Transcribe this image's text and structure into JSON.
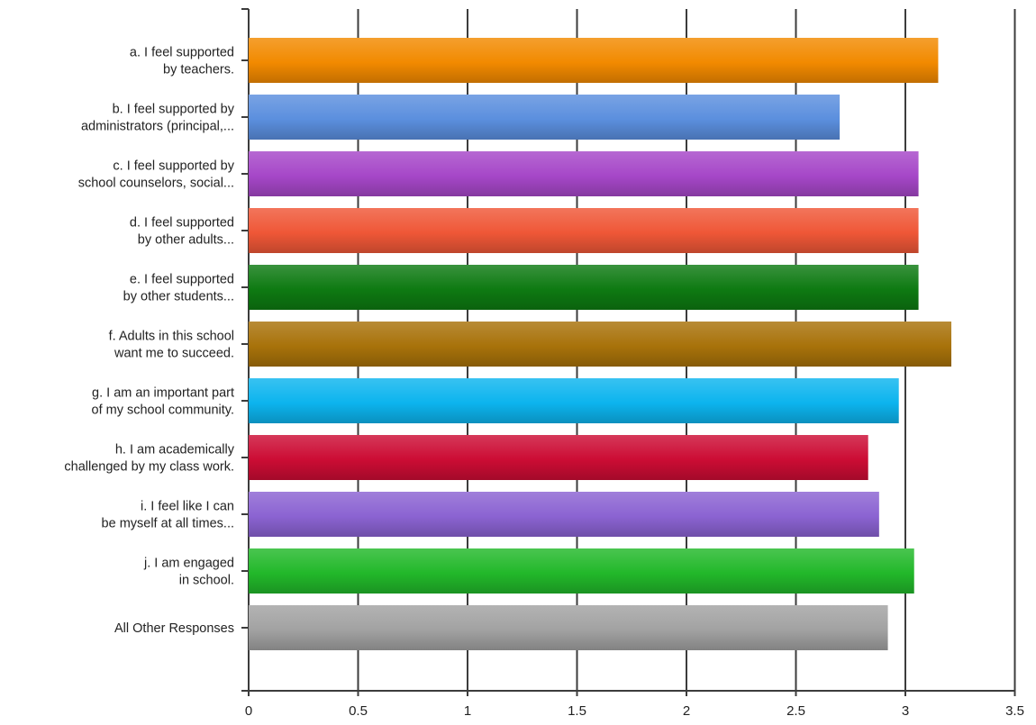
{
  "chart_data": {
    "type": "bar",
    "orientation": "horizontal",
    "categories": [
      [
        "a. I feel supported",
        "by teachers."
      ],
      [
        "b. I feel supported by",
        "administrators (principal,..."
      ],
      [
        "c. I feel supported by",
        "school counselors, social..."
      ],
      [
        "d. I feel supported",
        "by other adults..."
      ],
      [
        "e. I feel supported",
        "by other students..."
      ],
      [
        "f. Adults in this school",
        "want me to succeed."
      ],
      [
        "g. I am an important part",
        "of my school community."
      ],
      [
        "h. I am academically",
        "challenged by my class work."
      ],
      [
        "i. I feel like I can",
        "be myself at all times..."
      ],
      [
        "j. I am engaged",
        "in school."
      ],
      [
        "All Other Responses"
      ]
    ],
    "values": [
      3.15,
      2.7,
      3.06,
      3.06,
      3.06,
      3.21,
      2.97,
      2.83,
      2.88,
      3.04,
      2.92
    ],
    "colors": [
      "#f28a00",
      "#5b8fde",
      "#a647c8",
      "#ef5737",
      "#0e7a12",
      "#a8720a",
      "#0cb4ee",
      "#cc0c34",
      "#8b63d2",
      "#22b82a",
      "#a2a2a2"
    ],
    "x_ticks": [
      "0",
      "0.5",
      "1",
      "1.5",
      "2",
      "2.5",
      "3",
      "3.5"
    ],
    "xlim": [
      0,
      3.5
    ],
    "title": "",
    "xlabel": "",
    "ylabel": "",
    "grid": "vertical",
    "legend": "none"
  }
}
